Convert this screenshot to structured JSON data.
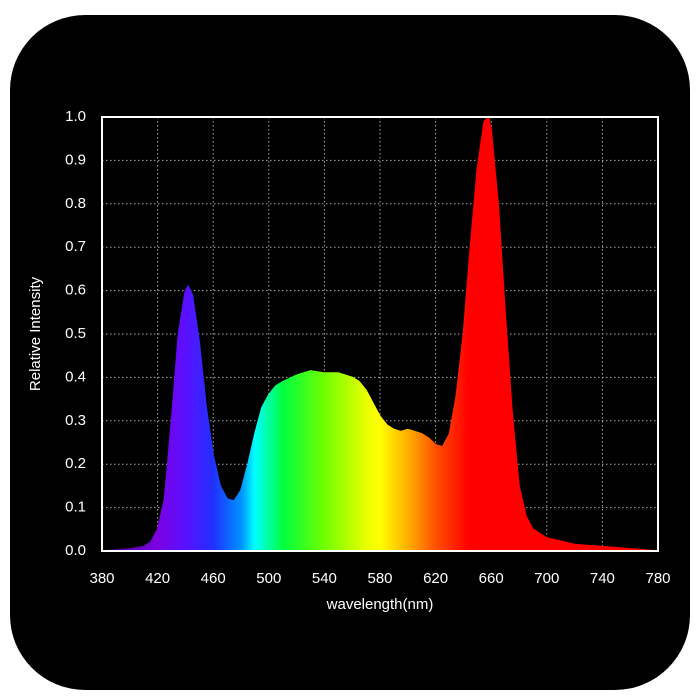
{
  "chart_data": {
    "type": "area",
    "xlabel": "wavelength(nm)",
    "ylabel": "Relative Intensity",
    "x": [
      380,
      400,
      410,
      415,
      420,
      425,
      430,
      435,
      440,
      442,
      445,
      450,
      455,
      460,
      465,
      470,
      475,
      480,
      485,
      490,
      495,
      500,
      505,
      510,
      520,
      530,
      540,
      550,
      560,
      565,
      570,
      575,
      580,
      585,
      590,
      595,
      600,
      605,
      610,
      615,
      620,
      625,
      630,
      635,
      640,
      645,
      650,
      655,
      658,
      660,
      665,
      670,
      675,
      680,
      685,
      690,
      700,
      720,
      740,
      760,
      780
    ],
    "values": [
      0.0,
      0.005,
      0.01,
      0.02,
      0.05,
      0.12,
      0.3,
      0.5,
      0.6,
      0.61,
      0.59,
      0.48,
      0.33,
      0.22,
      0.15,
      0.12,
      0.115,
      0.14,
      0.2,
      0.27,
      0.33,
      0.36,
      0.38,
      0.39,
      0.405,
      0.415,
      0.41,
      0.41,
      0.4,
      0.39,
      0.37,
      0.34,
      0.31,
      0.29,
      0.28,
      0.275,
      0.28,
      0.275,
      0.27,
      0.26,
      0.245,
      0.24,
      0.27,
      0.36,
      0.5,
      0.7,
      0.88,
      0.99,
      1.0,
      0.97,
      0.8,
      0.55,
      0.32,
      0.15,
      0.08,
      0.05,
      0.03,
      0.015,
      0.01,
      0.005,
      0.0
    ],
    "xlim": [
      380,
      780
    ],
    "ylim": [
      0,
      1
    ],
    "xticks": [
      380,
      420,
      460,
      500,
      540,
      580,
      620,
      660,
      700,
      740,
      780
    ],
    "yticks": [
      {
        "value": 0,
        "label": "0.0"
      },
      0.1,
      0.2,
      0.3,
      0.4,
      0.5,
      0.6,
      0.7,
      0.8,
      0.9,
      {
        "value": 1,
        "label": "1.0"
      }
    ],
    "grid": true
  }
}
